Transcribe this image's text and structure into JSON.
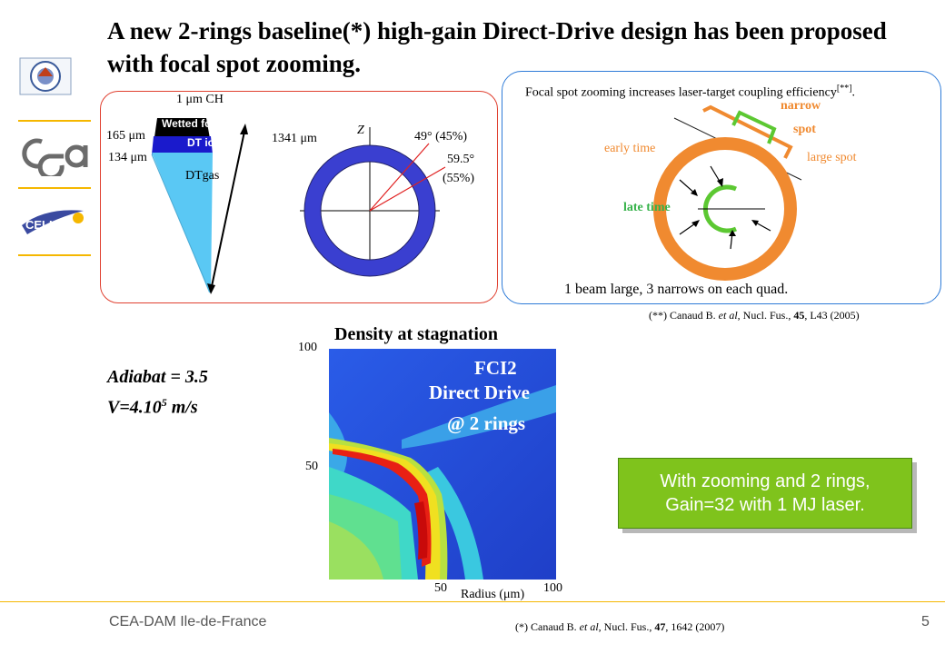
{
  "title": "A new 2-rings baseline(*) high-gain Direct-Drive design has been proposed with focal spot zooming.",
  "target": {
    "labels": {
      "ch": "1 μm CH",
      "wetted_foam": "Wetted foam",
      "dt_ice": "DT ice",
      "dtgas": "DTgas",
      "r165": "165 μm",
      "r134": "134 μm",
      "r1341": "1341 μm"
    }
  },
  "rings": {
    "z_label": "Z",
    "angle1": "49° (45%)",
    "angle2_line1": "59.5°",
    "angle2_line2": "(55%)"
  },
  "zoom": {
    "text": "Focal spot zooming increases laser-target coupling efficiency",
    "text_sup": "[**]",
    "text_end": ".",
    "narrow_line1": "narrow",
    "narrow_line2": "spot",
    "early": "early time",
    "large": "large spot",
    "late": "late time",
    "caption": "1 beam large, 3 narrows on each quad.",
    "ref_prefix": "(**) Canaud B. ",
    "ref_etal": "et al",
    "ref_mid": ", Nucl. Fus., ",
    "ref_vol": "45",
    "ref_end": ", L43 (2005)"
  },
  "params": {
    "adiabat": "Adiabat = 3.5",
    "velocity_prefix": "V=4.10",
    "velocity_exp": "5",
    "velocity_unit": " m/s"
  },
  "density": {
    "title": "Density at stagnation",
    "label1": "FCI2",
    "label2": "Direct Drive",
    "label3": "@ 2 rings",
    "y100": "100",
    "y50": "50",
    "x50": "50",
    "x100": "100",
    "xlabel": "Radius (μm)"
  },
  "callout": {
    "line1": "With zooming and 2 rings,",
    "line2": "Gain=32 with 1 MJ laser."
  },
  "footer": {
    "org": "CEA-DAM Ile-de-France",
    "page": "5",
    "ref_prefix": "(*) Canaud B. ",
    "ref_etal": "et al",
    "ref_mid": ", Nucl. Fus., ",
    "ref_vol": "47",
    "ref_end": ", 1642 (2007)"
  },
  "logos": {
    "celia": "CELIA"
  },
  "colors": {
    "accent": "#f5b700",
    "ring": "#3a3fd0",
    "zoom_orange": "#f08a30",
    "zoom_green": "#5cc832",
    "callout_green": "#7fc31c"
  }
}
